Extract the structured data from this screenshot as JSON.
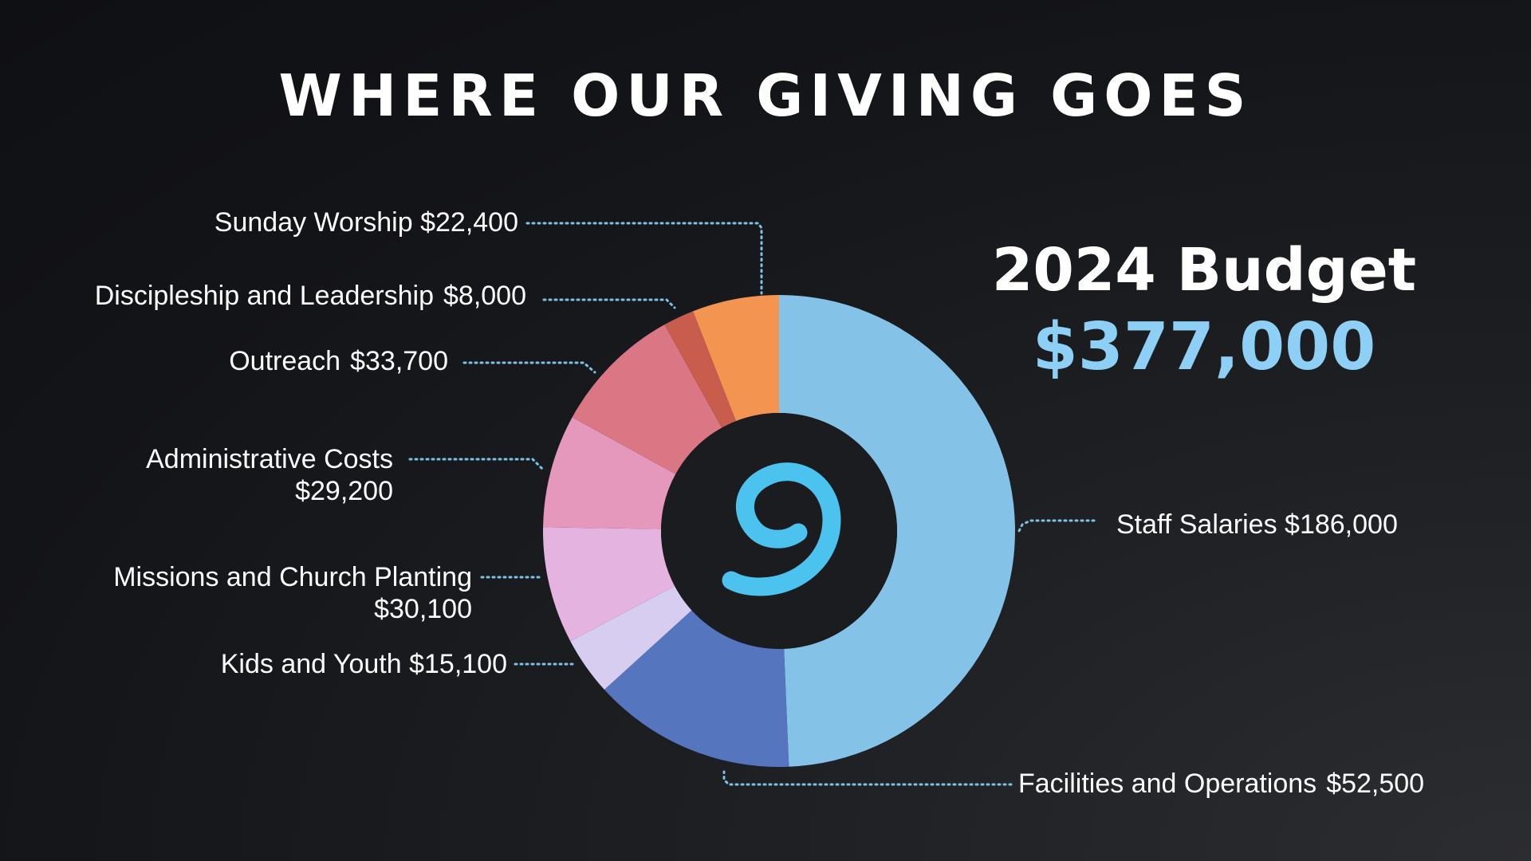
{
  "title": "WHERE OUR GIVING GOES",
  "budget": {
    "label": "2024 Budget",
    "total": "$377,000"
  },
  "logo": {
    "icon": "g-logo-icon",
    "color": "#4cc3ef"
  },
  "colors": {
    "leader": "#7fc1e6",
    "center": "#1b1c20"
  },
  "labels": {
    "staff": {
      "name": "Staff Salaries",
      "amount": "$186,000"
    },
    "facilities": {
      "name": "Facilities and Operations",
      "amount": "$52,500"
    },
    "kids": {
      "name": "Kids and Youth",
      "amount": "$15,100"
    },
    "missions": {
      "name": "Missions and Church Planting",
      "amount": "$30,100"
    },
    "admin": {
      "name": "Administrative Costs",
      "amount": "$29,200"
    },
    "outreach": {
      "name": "Outreach",
      "amount": "$33,700"
    },
    "discipleship": {
      "name": "Discipleship and Leadership",
      "amount": "$8,000"
    },
    "worship": {
      "name": "Sunday Worship",
      "amount": "$22,400"
    }
  },
  "chart_data": {
    "type": "pie",
    "title": "WHERE OUR GIVING GOES",
    "total": 377000,
    "categories": [
      "Staff Salaries",
      "Facilities and Operations",
      "Kids and Youth",
      "Missions and Church Planting",
      "Administrative Costs",
      "Outreach",
      "Discipleship and Leadership",
      "Sunday Worship"
    ],
    "values": [
      186000,
      52500,
      15100,
      30100,
      29200,
      33700,
      8000,
      22400
    ],
    "colors": [
      "#84c3e7",
      "#5575bf",
      "#d7cdf1",
      "#e5b3e0",
      "#e597bc",
      "#db7685",
      "#c85c4d",
      "#f49451"
    ],
    "hole": "donut",
    "legend": "none"
  }
}
